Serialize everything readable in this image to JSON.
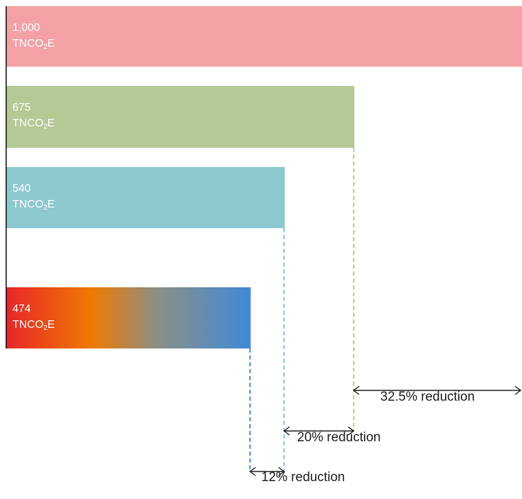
{
  "chart_data": {
    "type": "bar",
    "orientation": "horizontal",
    "xlim": [
      0,
      1000
    ],
    "grid": false,
    "bars": [
      {
        "value": 1000,
        "value_label": "1,000",
        "unit_prefix": "TNCO",
        "unit_sub": "2",
        "unit_suffix": "E",
        "color": "#f3a1a5"
      },
      {
        "value": 675,
        "value_label": "675",
        "unit_prefix": "TNCO",
        "unit_sub": "2",
        "unit_suffix": "E",
        "color": "#b5c995"
      },
      {
        "value": 540,
        "value_label": "540",
        "unit_prefix": "TNCO",
        "unit_sub": "2",
        "unit_suffix": "E",
        "color": "#8dc8cf"
      },
      {
        "value": 474,
        "value_label": "474",
        "unit_prefix": "TNCO",
        "unit_sub": "2",
        "unit_suffix": "E",
        "gradient": [
          "#e8252a",
          "#ef7a00",
          "#8a8f86",
          "#3f8ad8"
        ]
      }
    ],
    "annotations": [
      {
        "text": "32.5% reduction",
        "from": 675,
        "to": 1000,
        "color": "#b5c995"
      },
      {
        "text": "20% reduction",
        "from": 540,
        "to": 675,
        "color": "#8dc8cf"
      },
      {
        "text": "12% reduction",
        "from": 474,
        "to": 540,
        "color": "#3f8ad8"
      }
    ]
  }
}
